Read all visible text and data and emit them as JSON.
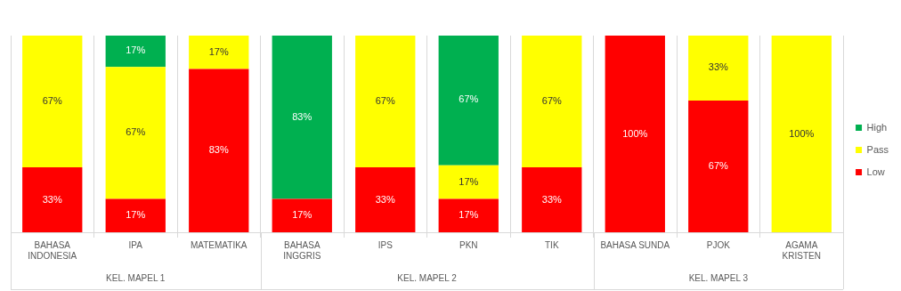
{
  "chart_data": {
    "type": "bar",
    "stacked": true,
    "categories": [
      "BAHASA INDONESIA",
      "IPA",
      "MATEMATIKA",
      "BAHASA INGGRIS",
      "IPS",
      "PKN",
      "TIK",
      "BAHASA SUNDA",
      "PJOK",
      "AGAMA KRISTEN"
    ],
    "series": [
      {
        "name": "Low",
        "color": "#ff0000",
        "values": [
          33,
          17,
          83,
          17,
          33,
          17,
          33,
          100,
          67,
          null
        ],
        "value_labels": [
          "33%",
          "17%",
          "83%",
          "17%",
          "33%",
          "17%",
          "33%",
          "100%",
          "67%",
          null
        ]
      },
      {
        "name": "Pass",
        "color": "#ffff00",
        "values": [
          67,
          67,
          17,
          null,
          67,
          17,
          67,
          null,
          33,
          100
        ],
        "value_labels": [
          "67%",
          "67%",
          "17%",
          null,
          "67%",
          "17%",
          "67%",
          null,
          "33%",
          "100%"
        ]
      },
      {
        "name": "High",
        "color": "#00b050",
        "values": [
          null,
          17,
          null,
          83,
          null,
          67,
          null,
          null,
          null,
          null
        ],
        "value_labels": [
          null,
          "17%",
          null,
          "83%",
          null,
          "67%",
          null,
          null,
          null,
          null
        ]
      }
    ],
    "annotations": [
      "KEL. MAPEL 1",
      "KEL. MAPEL 2",
      "KEL. MAPEL 3"
    ],
    "grid": "x",
    "legend": "right"
  }
}
